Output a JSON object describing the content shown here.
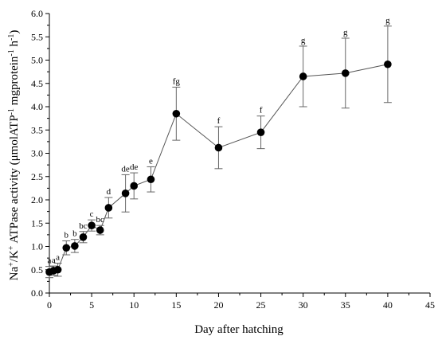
{
  "chart_data": {
    "type": "line",
    "xlabel": "Day after hatching",
    "ylabel": {
      "prefix": "Na",
      "sup1": "+",
      "mid": "/K",
      "sup2": "+",
      "text1": " ATPase activity (μmolATP",
      "sup3": "-1",
      "text2": " mgprotein",
      "sup4": "-1",
      "text3": " h",
      "sup5": "-1",
      "text4": ")"
    },
    "xlim": [
      0,
      45
    ],
    "ylim": [
      0,
      6.0
    ],
    "xticks": [
      0,
      5,
      10,
      15,
      20,
      25,
      30,
      35,
      40,
      45
    ],
    "yticks": [
      0.0,
      0.5,
      1.0,
      1.5,
      2.0,
      2.5,
      3.0,
      3.5,
      4.0,
      4.5,
      5.0,
      5.5,
      6.0
    ],
    "grid": false,
    "series": [
      {
        "x": [
          0,
          0.5,
          1,
          2,
          3,
          4,
          5,
          6,
          7,
          9,
          10,
          12,
          15,
          20,
          25,
          30,
          35,
          40
        ],
        "y": [
          0.45,
          0.48,
          0.5,
          0.97,
          1.01,
          1.2,
          1.45,
          1.35,
          1.83,
          2.14,
          2.3,
          2.44,
          3.85,
          3.12,
          3.45,
          4.65,
          4.72,
          4.91
        ],
        "error": [
          0.12,
          0.1,
          0.14,
          0.15,
          0.14,
          0.12,
          0.12,
          0.1,
          0.22,
          0.4,
          0.28,
          0.27,
          0.57,
          0.45,
          0.35,
          0.65,
          0.75,
          0.82
        ],
        "labels": [
          "a",
          "a",
          "a",
          "b",
          "b",
          "bc",
          "c",
          "bc",
          "d",
          "de",
          "de",
          "e",
          "fg",
          "f",
          "f",
          "g",
          "g",
          "g"
        ]
      }
    ]
  }
}
